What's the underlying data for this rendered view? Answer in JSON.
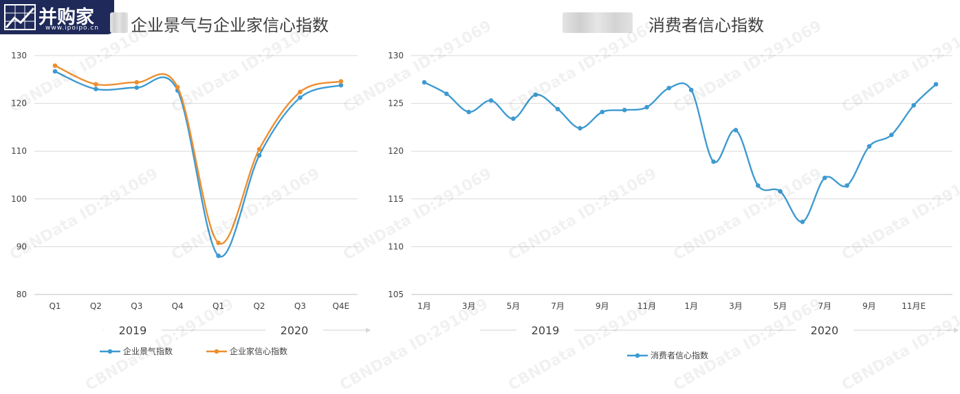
{
  "logo": {
    "name": "并购家",
    "sub": "www.ipoipo.cn"
  },
  "watermark": "CBNData ID:291069",
  "colors": {
    "blue": "#3d9ad1",
    "orange": "#ed8e2f",
    "grid": "#d9d9d9",
    "axis_text": "#404040"
  },
  "chart_data": [
    {
      "type": "line",
      "title": "企业景气与企业家信心指数",
      "categories": [
        "Q1",
        "Q2",
        "Q3",
        "Q4",
        "Q1",
        "Q2",
        "Q3",
        "Q4E"
      ],
      "groups": [
        {
          "label": "2019"
        },
        {
          "label": "2020"
        }
      ],
      "yticks": [
        80,
        90,
        100,
        110,
        120,
        130
      ],
      "ylim": [
        80,
        130
      ],
      "grid": true,
      "legend_position": "bottom",
      "series": [
        {
          "name": "企业景气指数",
          "color": "#3d9ad1",
          "values": [
            126.7,
            123.0,
            123.3,
            122.7,
            88.1,
            109.1,
            121.2,
            123.8
          ]
        },
        {
          "name": "企业家信心指数",
          "color": "#ed8e2f",
          "values": [
            127.9,
            124.0,
            124.4,
            123.4,
            90.8,
            110.4,
            122.4,
            124.6
          ]
        }
      ]
    },
    {
      "type": "line",
      "title": "消费者信心指数",
      "categories": [
        "1月",
        "",
        "3月",
        "",
        "5月",
        "",
        "7月",
        "",
        "9月",
        "",
        "11月",
        "",
        "1月",
        "",
        "3月",
        "",
        "5月",
        "",
        "7月",
        "",
        "9月",
        "",
        "11月E",
        ""
      ],
      "groups": [
        {
          "label": "2019"
        },
        {
          "label": "2020"
        }
      ],
      "yticks": [
        105,
        110,
        115,
        120,
        125,
        130
      ],
      "ylim": [
        105,
        130
      ],
      "grid": true,
      "legend_position": "bottom",
      "series": [
        {
          "name": "消费者信心指数",
          "color": "#3d9ad1",
          "values": [
            127.2,
            126.0,
            124.1,
            125.3,
            123.4,
            125.9,
            124.4,
            122.4,
            124.1,
            124.3,
            124.6,
            126.6,
            126.4,
            118.9,
            122.2,
            116.4,
            115.8,
            112.6,
            117.2,
            116.4,
            120.5,
            121.7,
            124.8,
            127.0
          ]
        }
      ]
    }
  ]
}
